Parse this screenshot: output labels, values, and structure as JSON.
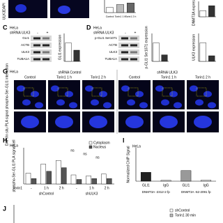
{
  "top": {
    "labels": [
      "DAPI",
      "ULK3"
    ],
    "x_labels": [
      "Control",
      "Torin1 1 h",
      "Torin1 2 h"
    ],
    "values": [
      1,
      1.6,
      1.9
    ],
    "ylim": [
      0,
      2.5
    ],
    "right_label": "DNMT3A expression",
    "right_values": [
      1,
      1.8
    ],
    "right_ylim": [
      0,
      2.5
    ]
  },
  "panel_c": {
    "letter": "C",
    "cell": "HeLa",
    "treatment": "shRNA ULK3",
    "signs": [
      "-",
      "+"
    ],
    "bands": [
      "GLI1",
      "ACTB",
      "ULK3",
      "TUBA1A"
    ],
    "y_label": "GLI1 expression",
    "values": [
      1,
      0.6
    ],
    "ylim": [
      0,
      1.5
    ]
  },
  "panel_d": {
    "letter": "D",
    "cell": "HeLa",
    "treatment": "shRNA ULK3",
    "signs": [
      "-",
      "+"
    ],
    "bands": [
      "p-GLI1 Ser1071",
      "ACTB",
      "ULK3",
      "TUBA1A"
    ],
    "y_label": "p-GLI1 Ser1071 expression",
    "values": [
      1,
      0.35
    ],
    "ylim": [
      0,
      1.5
    ]
  },
  "panel_f": {
    "y_label": "ULK3 expression",
    "values": [
      1,
      0.3
    ],
    "ylim": [
      0,
      1.5
    ]
  },
  "panel_g": {
    "letter": "G",
    "cell": "HeLa",
    "groups": [
      "shRNA Control",
      "shRNA ULK3"
    ],
    "columns": [
      "Control",
      "Torin1 1 h",
      "Torin1 2 h",
      "Control",
      "Torin1 1 h",
      "Torin1 2 h"
    ],
    "side_label": "DAPI/in situ PLA signal phospho-Ser-GLI1 interaction"
  },
  "panel_h": {
    "letter": "H",
    "cell": "HeLa",
    "legend": [
      "Cytoplasm",
      "Nucleus"
    ],
    "y_label": "phospho-Ser-GLI1 PLA signal/cell",
    "treatment": "Torin1",
    "doses": [
      "-",
      "1 h",
      "2 h",
      "-",
      "1 h",
      "2 h"
    ],
    "groups": [
      "shControl",
      "shULK3"
    ],
    "sig": [
      "ns",
      "ns",
      "ns"
    ],
    "cytoplasm": [
      12,
      22,
      26,
      10,
      9,
      11
    ],
    "nucleus": [
      6,
      14,
      18,
      5,
      6,
      6
    ],
    "ylim": [
      0,
      40
    ]
  },
  "panel_i": {
    "letter": "I",
    "cell": "HeLa",
    "y_label": "Normalized ChIP Signal",
    "x_labels": [
      "GLI1",
      "IgG",
      "GLI1",
      "IgG"
    ],
    "groups": [
      "DNMT3A -2312-2 fp",
      "DNMT3A -62-2091 fp"
    ],
    "values": [
      3.2,
      0.3,
      3.8,
      0.4
    ],
    "ylim": [
      0,
      12
    ]
  },
  "panel_j": {
    "letter": "J",
    "legend": [
      "shControl",
      "Torin1 30 min"
    ]
  }
}
